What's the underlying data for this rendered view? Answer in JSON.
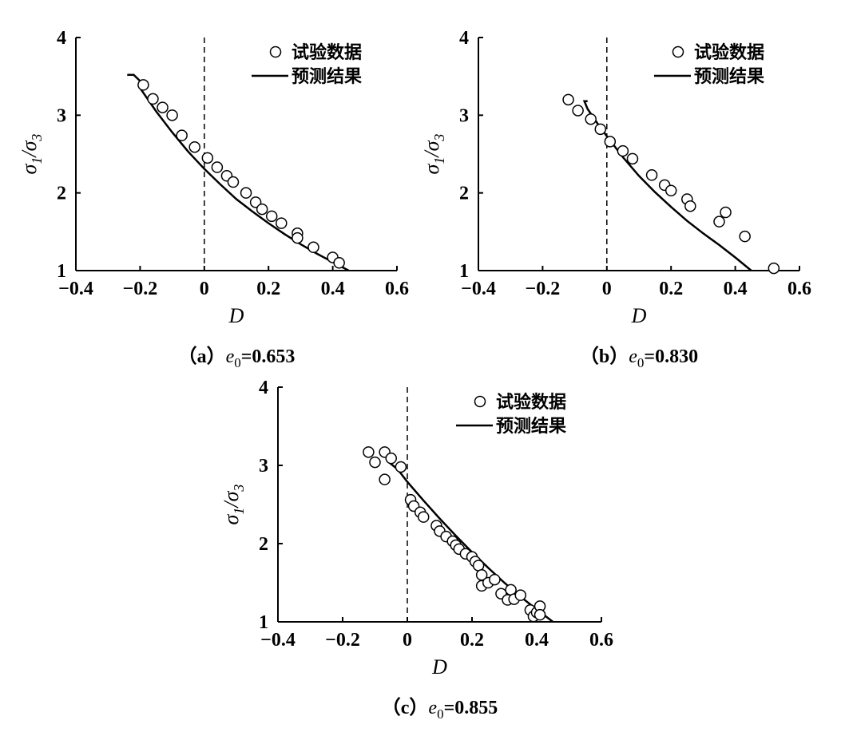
{
  "chart_data": [
    {
      "type": "scatter",
      "caption": {
        "prefix": "（a）",
        "symbol": "e",
        "sub": "0",
        "value": "=0.653"
      },
      "xlabel": "D",
      "ylabel": {
        "sig": "σ",
        "sub1": "1",
        "slash": "/",
        "sub3": "3"
      },
      "xlim": [
        -0.4,
        0.6
      ],
      "ylim": [
        1,
        4
      ],
      "xticks": [
        "−0.4",
        "−0.2",
        "0",
        "0.2",
        "0.4",
        "0.6"
      ],
      "yticks": [
        "1",
        "2",
        "3",
        "4"
      ],
      "legend": {
        "placement": "top-right",
        "scatter_label": "试验数据",
        "line_label": "预测结果"
      },
      "dashed_reference_x": 0,
      "series": [
        {
          "name": "试验数据",
          "kind": "scatter",
          "points": [
            [
              -0.19,
              3.39
            ],
            [
              -0.16,
              3.21
            ],
            [
              -0.13,
              3.1
            ],
            [
              -0.1,
              3.0
            ],
            [
              -0.07,
              2.74
            ],
            [
              -0.03,
              2.59
            ],
            [
              0.01,
              2.45
            ],
            [
              0.04,
              2.33
            ],
            [
              0.07,
              2.22
            ],
            [
              0.09,
              2.14
            ],
            [
              0.13,
              2.0
            ],
            [
              0.16,
              1.88
            ],
            [
              0.18,
              1.79
            ],
            [
              0.21,
              1.7
            ],
            [
              0.24,
              1.61
            ],
            [
              0.29,
              1.48
            ],
            [
              0.29,
              1.42
            ],
            [
              0.34,
              1.3
            ],
            [
              0.4,
              1.17
            ],
            [
              0.42,
              1.1
            ]
          ]
        },
        {
          "name": "预测结果",
          "kind": "line",
          "points": [
            [
              -0.24,
              3.52
            ],
            [
              -0.22,
              3.52
            ],
            [
              -0.2,
              3.44
            ],
            [
              -0.2,
              3.35
            ],
            [
              -0.15,
              3.05
            ],
            [
              -0.1,
              2.78
            ],
            [
              -0.05,
              2.53
            ],
            [
              0.0,
              2.31
            ],
            [
              0.05,
              2.11
            ],
            [
              0.1,
              1.92
            ],
            [
              0.15,
              1.76
            ],
            [
              0.2,
              1.61
            ],
            [
              0.25,
              1.47
            ],
            [
              0.3,
              1.34
            ],
            [
              0.35,
              1.22
            ],
            [
              0.4,
              1.11
            ],
            [
              0.45,
              1.0
            ]
          ]
        }
      ]
    },
    {
      "type": "scatter",
      "caption": {
        "prefix": "（b）",
        "symbol": "e",
        "sub": "0",
        "value": "=0.830"
      },
      "xlabel": "D",
      "ylabel": {
        "sig": "σ",
        "sub1": "1",
        "slash": "/",
        "sub3": "3"
      },
      "xlim": [
        -0.4,
        0.6
      ],
      "ylim": [
        1,
        4
      ],
      "xticks": [
        "−0.4",
        "−0.2",
        "0",
        "0.2",
        "0.4",
        "0.6"
      ],
      "yticks": [
        "1",
        "2",
        "3",
        "4"
      ],
      "legend": {
        "placement": "top-right",
        "scatter_label": "试验数据",
        "line_label": "预测结果"
      },
      "dashed_reference_x": 0,
      "series": [
        {
          "name": "试验数据",
          "kind": "scatter",
          "points": [
            [
              -0.12,
              3.2
            ],
            [
              -0.09,
              3.06
            ],
            [
              -0.05,
              2.95
            ],
            [
              -0.02,
              2.82
            ],
            [
              0.01,
              2.66
            ],
            [
              0.05,
              2.54
            ],
            [
              0.08,
              2.44
            ],
            [
              0.14,
              2.23
            ],
            [
              0.18,
              2.1
            ],
            [
              0.2,
              2.03
            ],
            [
              0.25,
              1.92
            ],
            [
              0.26,
              1.83
            ],
            [
              0.37,
              1.75
            ],
            [
              0.35,
              1.63
            ],
            [
              0.43,
              1.44
            ],
            [
              0.52,
              1.03
            ]
          ]
        },
        {
          "name": "预测结果",
          "kind": "line",
          "points": [
            [
              -0.06,
              3.18
            ],
            [
              -0.07,
              3.18
            ],
            [
              -0.06,
              3.08
            ],
            [
              -0.03,
              2.9
            ],
            [
              0.0,
              2.73
            ],
            [
              0.05,
              2.46
            ],
            [
              0.1,
              2.22
            ],
            [
              0.15,
              2.01
            ],
            [
              0.2,
              1.82
            ],
            [
              0.25,
              1.64
            ],
            [
              0.3,
              1.48
            ],
            [
              0.35,
              1.33
            ],
            [
              0.4,
              1.17
            ],
            [
              0.45,
              1.0
            ]
          ]
        }
      ]
    },
    {
      "type": "scatter",
      "caption": {
        "prefix": "（c）",
        "symbol": "e",
        "sub": "0",
        "value": "=0.855"
      },
      "xlabel": "D",
      "ylabel": {
        "sig": "σ",
        "sub1": "1",
        "slash": "/",
        "sub3": "3"
      },
      "xlim": [
        -0.4,
        0.6
      ],
      "ylim": [
        1,
        4
      ],
      "xticks": [
        "−0.4",
        "−0.2",
        "0",
        "0.2",
        "0.4",
        "0.6"
      ],
      "yticks": [
        "1",
        "2",
        "3",
        "4"
      ],
      "legend": {
        "placement": "top-right",
        "scatter_label": "试验数据",
        "line_label": "预测结果"
      },
      "dashed_reference_x": 0,
      "series": [
        {
          "name": "试验数据",
          "kind": "scatter",
          "points": [
            [
              -0.12,
              3.17
            ],
            [
              -0.1,
              3.04
            ],
            [
              -0.07,
              3.17
            ],
            [
              -0.07,
              2.82
            ],
            [
              -0.05,
              3.09
            ],
            [
              -0.02,
              2.98
            ],
            [
              0.01,
              2.56
            ],
            [
              0.02,
              2.48
            ],
            [
              0.04,
              2.4
            ],
            [
              0.05,
              2.34
            ],
            [
              0.09,
              2.23
            ],
            [
              0.1,
              2.16
            ],
            [
              0.12,
              2.09
            ],
            [
              0.14,
              2.03
            ],
            [
              0.15,
              1.98
            ],
            [
              0.16,
              1.93
            ],
            [
              0.18,
              1.87
            ],
            [
              0.2,
              1.83
            ],
            [
              0.21,
              1.77
            ],
            [
              0.22,
              1.72
            ],
            [
              0.23,
              1.6
            ],
            [
              0.23,
              1.46
            ],
            [
              0.25,
              1.5
            ],
            [
              0.27,
              1.54
            ],
            [
              0.29,
              1.36
            ],
            [
              0.32,
              1.41
            ],
            [
              0.31,
              1.28
            ],
            [
              0.33,
              1.29
            ],
            [
              0.35,
              1.34
            ],
            [
              0.38,
              1.15
            ],
            [
              0.39,
              1.07
            ],
            [
              0.4,
              1.12
            ],
            [
              0.41,
              1.2
            ],
            [
              0.41,
              1.09
            ]
          ]
        },
        {
          "name": "预测结果",
          "kind": "line",
          "points": [
            [
              -0.06,
              3.05
            ],
            [
              -0.03,
              2.95
            ],
            [
              0.0,
              2.79
            ],
            [
              0.05,
              2.55
            ],
            [
              0.1,
              2.32
            ],
            [
              0.15,
              2.1
            ],
            [
              0.2,
              1.89
            ],
            [
              0.25,
              1.69
            ],
            [
              0.3,
              1.5
            ],
            [
              0.35,
              1.32
            ],
            [
              0.4,
              1.16
            ],
            [
              0.45,
              1.0
            ]
          ]
        }
      ]
    }
  ]
}
